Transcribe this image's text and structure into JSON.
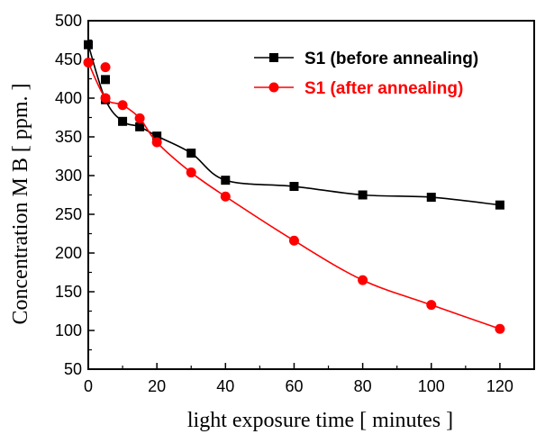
{
  "chart_data": {
    "type": "line",
    "xlabel": "light exposure time  [ minutes ]",
    "ylabel": "Concentration M B  [ ppm. ]",
    "xlim": [
      0,
      130
    ],
    "ylim": [
      50,
      500
    ],
    "x_ticks": [
      0,
      20,
      40,
      60,
      80,
      100,
      120
    ],
    "y_ticks": [
      50,
      100,
      150,
      200,
      250,
      300,
      350,
      400,
      450,
      500
    ],
    "grid": false,
    "legend_position": "top-right",
    "series": [
      {
        "name": "S1 (before annealing)",
        "color": "#000000",
        "marker": "square",
        "x": [
          0,
          5,
          10,
          15,
          20,
          30,
          40,
          60,
          80,
          100,
          120
        ],
        "y": [
          469,
          398,
          370,
          363,
          351,
          329,
          294,
          286,
          275,
          272,
          262
        ],
        "extra_points": [
          {
            "x": 5,
            "y": 424
          }
        ]
      },
      {
        "name": "S1 (after annealing)",
        "color": "#ff0000",
        "marker": "circle",
        "x": [
          0,
          5,
          10,
          15,
          20,
          30,
          40,
          60,
          80,
          100,
          120
        ],
        "y": [
          446,
          400,
          391,
          374,
          343,
          304,
          273,
          216,
          165,
          133,
          102
        ],
        "extra_points": [
          {
            "x": 5,
            "y": 440
          }
        ]
      }
    ]
  }
}
